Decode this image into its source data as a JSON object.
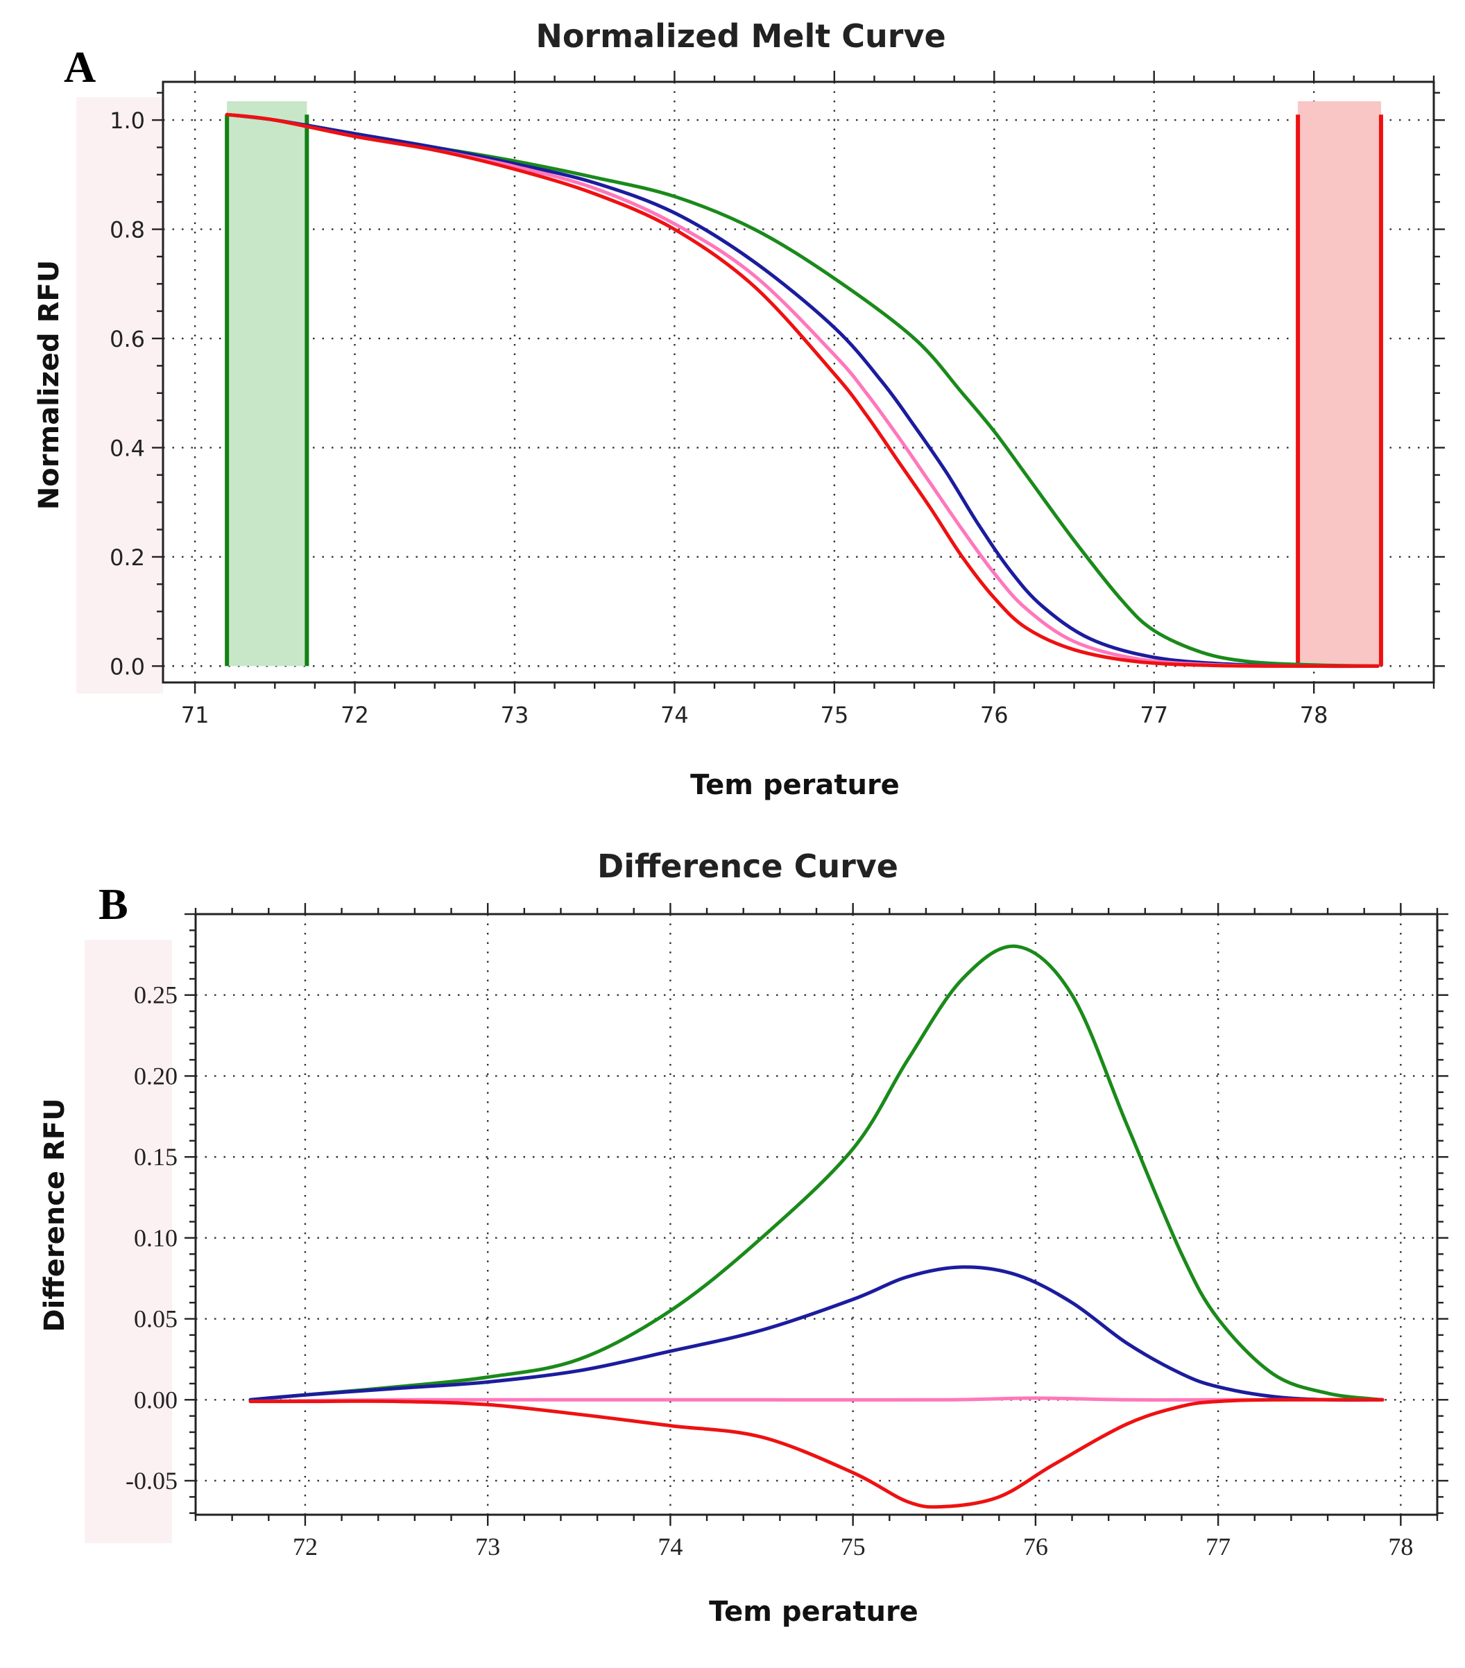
{
  "panels": {
    "a": "A",
    "b": "B"
  },
  "chart_data": [
    {
      "type": "line",
      "title": "Normalized Melt Curve",
      "xlabel": "Tem perature",
      "ylabel": "Normalized RFU",
      "xlim": [
        70.8,
        78.75
      ],
      "ylim": [
        -0.03,
        1.07
      ],
      "xticks": [
        71,
        72,
        73,
        74,
        75,
        76,
        77,
        78
      ],
      "xtick_labels": [
        "71",
        "72",
        "73",
        "74",
        "75",
        "76",
        "77",
        "78"
      ],
      "yticks": [
        0.0,
        0.2,
        0.4,
        0.6,
        0.8,
        1.0
      ],
      "ytick_labels": [
        "0.0",
        "0.2",
        "0.4",
        "0.6",
        "0.8",
        "1.0"
      ],
      "grid": true,
      "regions": [
        {
          "from": 71.2,
          "to": 71.7,
          "ymin": 0.0,
          "ymax": 1.01,
          "color": "#138013",
          "fill": "#c8e6c8"
        },
        {
          "from": 77.9,
          "to": 78.42,
          "ymin": 0.0,
          "ymax": 1.01,
          "color": "#ee1111",
          "fill": "#fac5c5"
        }
      ],
      "series": [
        {
          "color": "#1a8a1a",
          "x": [
            71.2,
            71.5,
            72.0,
            72.5,
            73.0,
            73.5,
            74.0,
            74.5,
            75.0,
            75.5,
            75.8,
            76.0,
            76.2,
            76.5,
            76.8,
            77.0,
            77.3,
            77.6,
            78.0,
            78.4
          ],
          "y": [
            1.01,
            1.0,
            0.975,
            0.95,
            0.925,
            0.895,
            0.86,
            0.8,
            0.71,
            0.6,
            0.5,
            0.43,
            0.35,
            0.23,
            0.12,
            0.065,
            0.025,
            0.008,
            0.002,
            0.0
          ]
        },
        {
          "color": "#1c1c9e",
          "x": [
            71.2,
            71.5,
            72.0,
            72.5,
            73.0,
            73.5,
            74.0,
            74.5,
            75.0,
            75.3,
            75.5,
            75.7,
            75.9,
            76.1,
            76.3,
            76.6,
            77.0,
            77.5,
            78.0,
            78.4
          ],
          "y": [
            1.01,
            1.0,
            0.975,
            0.95,
            0.92,
            0.885,
            0.83,
            0.74,
            0.62,
            0.52,
            0.44,
            0.355,
            0.26,
            0.175,
            0.11,
            0.05,
            0.016,
            0.003,
            0.0,
            0.0
          ]
        },
        {
          "color": "#ff77bb",
          "x": [
            71.2,
            71.5,
            72.0,
            72.5,
            73.0,
            73.5,
            74.0,
            74.5,
            75.0,
            75.2,
            75.4,
            75.6,
            75.8,
            76.0,
            76.2,
            76.5,
            76.9,
            77.4,
            78.0,
            78.4
          ],
          "y": [
            1.01,
            1.0,
            0.97,
            0.945,
            0.915,
            0.875,
            0.81,
            0.715,
            0.57,
            0.5,
            0.42,
            0.335,
            0.25,
            0.17,
            0.105,
            0.045,
            0.013,
            0.002,
            0.0,
            0.0
          ]
        },
        {
          "color": "#ee1111",
          "x": [
            71.2,
            71.5,
            72.0,
            72.5,
            73.0,
            73.5,
            74.0,
            74.5,
            75.0,
            75.2,
            75.4,
            75.6,
            75.8,
            76.0,
            76.2,
            76.5,
            76.9,
            77.4,
            78.0,
            78.4
          ],
          "y": [
            1.01,
            1.0,
            0.97,
            0.945,
            0.91,
            0.865,
            0.8,
            0.695,
            0.535,
            0.46,
            0.375,
            0.29,
            0.2,
            0.125,
            0.07,
            0.03,
            0.008,
            0.001,
            0.0,
            0.0
          ]
        }
      ]
    },
    {
      "type": "line",
      "title": "Difference Curve",
      "xlabel": "Tem perature",
      "ylabel": "Difference RFU",
      "xlim": [
        71.4,
        78.2
      ],
      "ylim": [
        -0.071,
        0.3
      ],
      "xticks": [
        72,
        73,
        74,
        75,
        76,
        77,
        78
      ],
      "xtick_labels": [
        "72",
        "73",
        "74",
        "75",
        "76",
        "77",
        "78"
      ],
      "yticks": [
        -0.05,
        0.0,
        0.05,
        0.1,
        0.15,
        0.2,
        0.25
      ],
      "ytick_labels": [
        "-0.05",
        "0.00",
        "0.05",
        "0.10",
        "0.15",
        "0.20",
        "0.25"
      ],
      "grid": true,
      "series": [
        {
          "color": "#1a8a1a",
          "x": [
            71.7,
            72.0,
            72.5,
            73.0,
            73.5,
            74.0,
            74.5,
            75.0,
            75.3,
            75.6,
            75.9,
            76.2,
            76.5,
            76.8,
            77.0,
            77.3,
            77.6,
            77.9
          ],
          "y": [
            0.0,
            0.003,
            0.008,
            0.014,
            0.025,
            0.055,
            0.1,
            0.155,
            0.21,
            0.26,
            0.28,
            0.25,
            0.17,
            0.09,
            0.05,
            0.016,
            0.004,
            0.0
          ]
        },
        {
          "color": "#1c1c9e",
          "x": [
            71.7,
            72.0,
            72.5,
            73.0,
            73.5,
            74.0,
            74.5,
            75.0,
            75.3,
            75.6,
            75.9,
            76.2,
            76.5,
            76.8,
            77.0,
            77.3,
            77.6,
            77.9
          ],
          "y": [
            0.0,
            0.003,
            0.007,
            0.011,
            0.018,
            0.03,
            0.043,
            0.062,
            0.076,
            0.082,
            0.077,
            0.06,
            0.035,
            0.016,
            0.008,
            0.002,
            0.0,
            0.0
          ]
        },
        {
          "color": "#ff77bb",
          "x": [
            71.7,
            72.5,
            73.5,
            74.5,
            75.5,
            76.0,
            76.5,
            77.0,
            77.9
          ],
          "y": [
            -0.001,
            0.0,
            0.0,
            0.0,
            0.0,
            0.001,
            0.0,
            0.0,
            0.0
          ]
        },
        {
          "color": "#ee1111",
          "x": [
            71.7,
            72.0,
            72.5,
            73.0,
            73.5,
            74.0,
            74.5,
            75.0,
            75.3,
            75.5,
            75.8,
            76.1,
            76.5,
            76.8,
            77.0,
            77.3,
            77.9
          ],
          "y": [
            -0.001,
            -0.001,
            -0.001,
            -0.003,
            -0.009,
            -0.016,
            -0.023,
            -0.045,
            -0.063,
            -0.066,
            -0.06,
            -0.04,
            -0.015,
            -0.004,
            -0.001,
            0.0,
            0.0
          ]
        }
      ]
    }
  ]
}
